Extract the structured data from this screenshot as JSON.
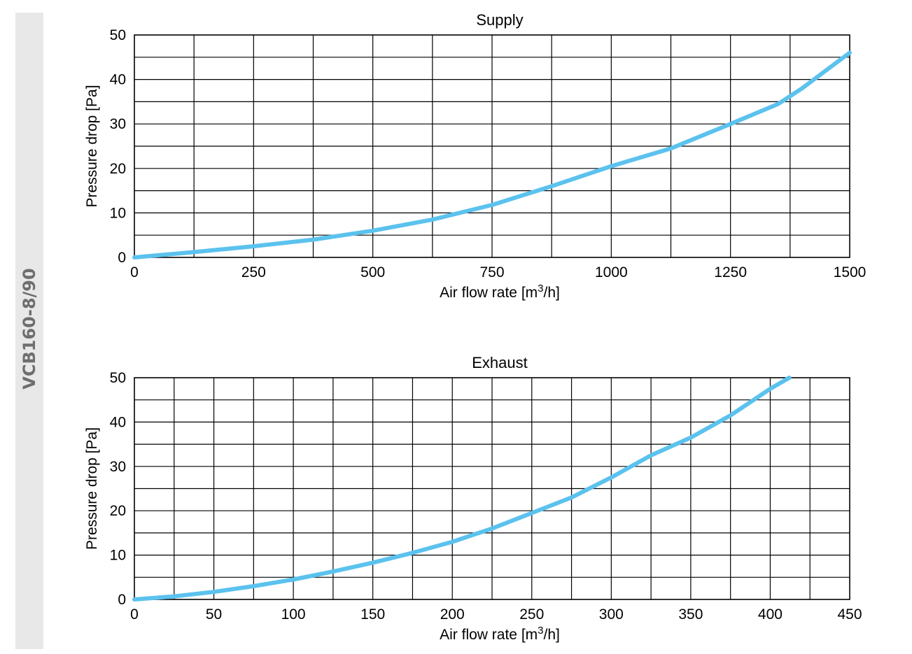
{
  "sidebar": {
    "model": "VCB160-8/90"
  },
  "chart_data": [
    {
      "type": "line",
      "title": "Supply",
      "xlabel": "Air flow rate [m3/h]",
      "ylabel": "Pressure drop [Pa]",
      "xlim": [
        0,
        1500
      ],
      "ylim": [
        0,
        50
      ],
      "xticks": [
        0,
        250,
        500,
        750,
        1000,
        1250,
        1500
      ],
      "yticks": [
        0,
        10,
        20,
        30,
        40,
        50
      ],
      "grid": true,
      "series": [
        {
          "color": "#5bc2ee",
          "x": [
            0,
            125,
            250,
            375,
            500,
            625,
            750,
            875,
            1000,
            1125,
            1250,
            1350,
            1400,
            1500
          ],
          "y": [
            0,
            1.2,
            2.5,
            4.0,
            6.0,
            8.5,
            11.8,
            16.0,
            20.5,
            24.5,
            30.0,
            34.5,
            38.0,
            46.0
          ]
        }
      ]
    },
    {
      "type": "line",
      "title": "Exhaust",
      "xlabel": "Air flow rate [m3/h]",
      "ylabel": "Pressure drop [Pa]",
      "xlim": [
        0,
        450
      ],
      "ylim": [
        0,
        50
      ],
      "xticks": [
        0,
        50,
        100,
        150,
        200,
        250,
        300,
        350,
        400,
        450
      ],
      "yticks": [
        0,
        10,
        20,
        30,
        40,
        50
      ],
      "grid": true,
      "series": [
        {
          "color": "#5bc2ee",
          "x": [
            0,
            25,
            50,
            75,
            100,
            125,
            150,
            175,
            200,
            225,
            250,
            275,
            300,
            325,
            350,
            375,
            400,
            412
          ],
          "y": [
            0,
            0.7,
            1.7,
            3.0,
            4.5,
            6.3,
            8.3,
            10.5,
            13.0,
            16.0,
            19.5,
            23.0,
            27.5,
            32.5,
            36.5,
            41.5,
            47.5,
            50.0
          ]
        }
      ]
    }
  ]
}
